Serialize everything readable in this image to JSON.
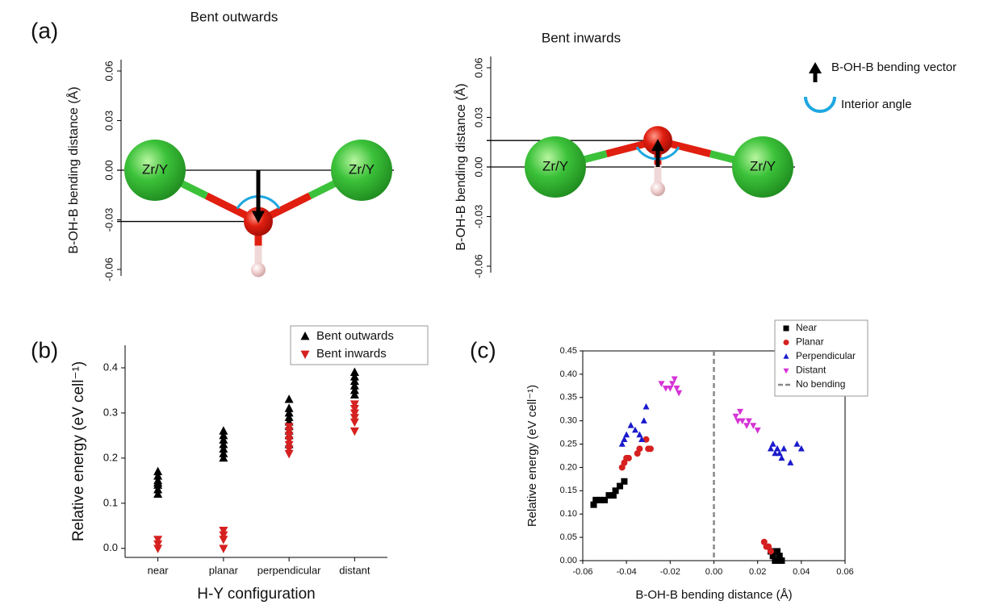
{
  "panels": [
    "(a)",
    "(b)",
    "(c)"
  ],
  "legend_a": {
    "vector": "B-OH-B bending vector",
    "angle": "Interior angle"
  },
  "chart_data": [
    {
      "type": "molecule",
      "title": "Bent outwards",
      "ylabel": "B-OH-B bending distance (Å)",
      "ylim": [
        -0.06,
        0.06
      ],
      "yticks": [
        -0.06,
        -0.03,
        {
          "value": 0,
          "label": "0.00"
        },
        0.03,
        0.06
      ],
      "atoms": [
        "Zr/Y",
        "Zr/Y"
      ],
      "bending": -0.031
    },
    {
      "type": "molecule",
      "title": "Bent inwards",
      "ylabel": "B-OH-B bending distance (Å)",
      "ylim": [
        -0.06,
        0.06
      ],
      "yticks": [
        -0.06,
        -0.03,
        {
          "value": 0,
          "label": "0.00"
        },
        0.03,
        0.06
      ],
      "atoms": [
        "Zr/Y",
        "Zr/Y"
      ],
      "bending": 0.016
    },
    {
      "type": "strip",
      "xlabel": "H-Y configuration",
      "ylabel": "Relative energy (eV cell⁻¹)",
      "categories": [
        "near",
        "planar",
        "perpendicular",
        "distant"
      ],
      "ylim": [
        -0.02,
        0.45
      ],
      "yticks": [
        {
          "value": 0,
          "label": "0.0"
        },
        0.1,
        0.2,
        0.3,
        0.4
      ],
      "series": [
        {
          "name": "Bent outwards",
          "color": "#000000",
          "marker": "triangle-up",
          "values": [
            [
              0.12,
              0.13,
              0.14,
              0.145,
              0.15,
              0.16,
              0.17
            ],
            [
              0.2,
              0.21,
              0.22,
              0.23,
              0.24,
              0.25,
              0.26
            ],
            [
              0.23,
              0.25,
              0.26,
              0.27,
              0.28,
              0.29,
              0.3,
              0.31,
              0.33
            ],
            [
              0.34,
              0.35,
              0.36,
              0.37,
              0.38,
              0.39
            ]
          ]
        },
        {
          "name": "Bent inwards",
          "color": "#d62020",
          "marker": "triangle-down",
          "values": [
            [
              0.0,
              0.01,
              0.02
            ],
            [
              0.0,
              0.02,
              0.03,
              0.04
            ],
            [
              0.21,
              0.22,
              0.23,
              0.24,
              0.25,
              0.26,
              0.27
            ],
            [
              0.26,
              0.28,
              0.29,
              0.3,
              0.31,
              0.32
            ]
          ]
        }
      ]
    },
    {
      "type": "scatter",
      "xlabel": "B-OH-B bending distance (Å)",
      "ylabel": "Relative energy (eV cell⁻¹)",
      "xlim": [
        -0.06,
        0.06
      ],
      "xticks": [
        -0.06,
        -0.04,
        -0.02,
        {
          "value": 0,
          "label": "0.00"
        },
        0.02,
        0.04,
        0.06
      ],
      "ylim": [
        0,
        0.45
      ],
      "yticks": [
        {
          "value": 0,
          "label": "0.00"
        },
        0.05,
        {
          "value": 0.1,
          "label": "0.10"
        },
        0.15,
        {
          "value": 0.2,
          "label": "0.20"
        },
        0.25,
        {
          "value": 0.3,
          "label": "0.30"
        },
        0.35,
        {
          "value": 0.4,
          "label": "0.40"
        },
        0.45
      ],
      "series": [
        {
          "name": "Near",
          "color": "#000000",
          "marker": "square",
          "x": [
            -0.055,
            -0.054,
            -0.052,
            -0.05,
            -0.048,
            -0.046,
            -0.045,
            -0.043,
            -0.041,
            0.026,
            0.027,
            0.028,
            0.029,
            0.03,
            0.031,
            0.029
          ],
          "y": [
            0.12,
            0.13,
            0.13,
            0.13,
            0.14,
            0.14,
            0.15,
            0.16,
            0.17,
            0.02,
            0.01,
            0.0,
            0.02,
            0.01,
            0.0,
            0.0
          ]
        },
        {
          "name": "Planar",
          "color": "#d62020",
          "marker": "circle",
          "x": [
            -0.042,
            -0.041,
            -0.04,
            -0.039,
            -0.035,
            -0.034,
            -0.031,
            -0.03,
            -0.029,
            0.023,
            0.024,
            0.025,
            0.026
          ],
          "y": [
            0.2,
            0.21,
            0.22,
            0.22,
            0.23,
            0.24,
            0.26,
            0.24,
            0.24,
            0.04,
            0.03,
            0.03,
            0.02
          ]
        },
        {
          "name": "Perpendicular",
          "color": "#1a1acc",
          "marker": "triangle-up",
          "x": [
            -0.042,
            -0.041,
            -0.04,
            -0.038,
            -0.036,
            -0.034,
            -0.033,
            -0.031,
            -0.032,
            0.026,
            0.027,
            0.028,
            0.029,
            0.03,
            0.031,
            0.035,
            0.038,
            0.04,
            0.032
          ],
          "y": [
            0.25,
            0.26,
            0.27,
            0.29,
            0.28,
            0.27,
            0.26,
            0.33,
            0.3,
            0.24,
            0.25,
            0.23,
            0.24,
            0.23,
            0.22,
            0.21,
            0.25,
            0.24,
            0.24
          ]
        },
        {
          "name": "Distant",
          "color": "#d633d6",
          "marker": "triangle-down",
          "x": [
            -0.024,
            -0.022,
            -0.02,
            -0.019,
            -0.018,
            -0.017,
            -0.016,
            0.01,
            0.012,
            0.013,
            0.015,
            0.016,
            0.018,
            0.02,
            0.011
          ],
          "y": [
            0.38,
            0.37,
            0.37,
            0.38,
            0.39,
            0.37,
            0.36,
            0.31,
            0.32,
            0.3,
            0.29,
            0.3,
            0.29,
            0.28,
            0.3
          ]
        }
      ],
      "vline": {
        "name": "No bending",
        "value": 0,
        "color": "#888888"
      }
    }
  ]
}
